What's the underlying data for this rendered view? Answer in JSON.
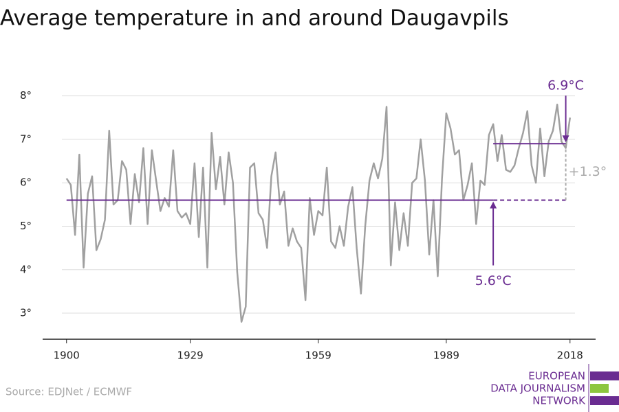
{
  "chart_data": {
    "type": "line",
    "title": "Average temperature in and around Daugavpils",
    "source": "Source: EDJNet / ECMWF",
    "x": [
      1900,
      1901,
      1902,
      1903,
      1904,
      1905,
      1906,
      1907,
      1908,
      1909,
      1910,
      1911,
      1912,
      1913,
      1914,
      1915,
      1916,
      1917,
      1918,
      1919,
      1920,
      1921,
      1922,
      1923,
      1924,
      1925,
      1926,
      1927,
      1928,
      1929,
      1930,
      1931,
      1932,
      1933,
      1934,
      1935,
      1936,
      1937,
      1938,
      1939,
      1940,
      1941,
      1942,
      1943,
      1944,
      1945,
      1946,
      1947,
      1948,
      1949,
      1950,
      1951,
      1952,
      1953,
      1954,
      1955,
      1956,
      1957,
      1958,
      1959,
      1960,
      1961,
      1962,
      1963,
      1964,
      1965,
      1966,
      1967,
      1968,
      1969,
      1970,
      1971,
      1972,
      1973,
      1974,
      1975,
      1976,
      1977,
      1978,
      1979,
      1980,
      1981,
      1982,
      1983,
      1984,
      1985,
      1986,
      1987,
      1988,
      1989,
      1990,
      1991,
      1992,
      1993,
      1994,
      1995,
      1996,
      1997,
      1998,
      1999,
      2000,
      2001,
      2002,
      2003,
      2004,
      2005,
      2006,
      2007,
      2008,
      2009,
      2010,
      2011,
      2012,
      2013,
      2014,
      2015,
      2016,
      2017,
      2018
    ],
    "series": [
      {
        "color": "#a0a0a0",
        "values": [
          6.1,
          5.95,
          4.8,
          6.65,
          4.05,
          5.75,
          6.15,
          4.45,
          4.7,
          5.15,
          7.2,
          5.5,
          5.6,
          6.5,
          6.3,
          5.05,
          6.2,
          5.55,
          6.8,
          5.05,
          6.75,
          6.05,
          5.35,
          5.65,
          5.45,
          6.75,
          5.35,
          5.2,
          5.3,
          5.05,
          6.45,
          4.75,
          6.35,
          4.05,
          7.15,
          5.85,
          6.6,
          5.5,
          6.7,
          6.0,
          3.95,
          2.8,
          3.15,
          6.35,
          6.45,
          5.3,
          5.15,
          4.5,
          6.15,
          6.7,
          5.5,
          5.8,
          4.55,
          4.95,
          4.65,
          4.5,
          3.3,
          5.65,
          4.8,
          5.35,
          5.25,
          6.35,
          4.65,
          4.5,
          5.0,
          4.55,
          5.45,
          5.9,
          4.5,
          3.45,
          5.0,
          6.05,
          6.45,
          6.1,
          6.55,
          7.75,
          4.1,
          5.55,
          4.45,
          5.3,
          4.55,
          6.0,
          6.1,
          7.0,
          6.05,
          4.35,
          5.6,
          3.85,
          6.1,
          7.6,
          7.25,
          6.65,
          6.75,
          5.6,
          5.95,
          6.45,
          5.05,
          6.05,
          5.95,
          7.1,
          7.35,
          6.5,
          7.1,
          6.3,
          6.25,
          6.4,
          6.8,
          7.15,
          7.65,
          6.4,
          6.0,
          7.25,
          6.15,
          6.95,
          7.2,
          7.8,
          6.95,
          6.8,
          7.5
        ]
      }
    ],
    "reference_lines": [
      {
        "label": "5.6°C",
        "value": 5.6,
        "from": 1900,
        "to": 2000,
        "dashed_to": 2017,
        "color": "#6a2c91"
      },
      {
        "label": "6.9°C",
        "value": 6.9,
        "from": 2000,
        "to": 2017,
        "color": "#6a2c91"
      }
    ],
    "difference_label": "+1.3°",
    "xlim": [
      1894.4,
      2024
    ],
    "ylim": [
      2.4,
      8.5
    ],
    "xticks": [
      1900,
      1929,
      1959,
      1989,
      2018
    ],
    "yticks": [
      {
        "value": 3,
        "label": "3°"
      },
      {
        "value": 4,
        "label": "4°"
      },
      {
        "value": 5,
        "label": "5°"
      },
      {
        "value": 6,
        "label": "6°"
      },
      {
        "value": 7,
        "label": "7°"
      },
      {
        "value": 8,
        "label": "8°"
      }
    ],
    "grid": true,
    "logo": [
      "EUROPEAN",
      "DATA JOURNALISM",
      "NETWORK"
    ]
  }
}
